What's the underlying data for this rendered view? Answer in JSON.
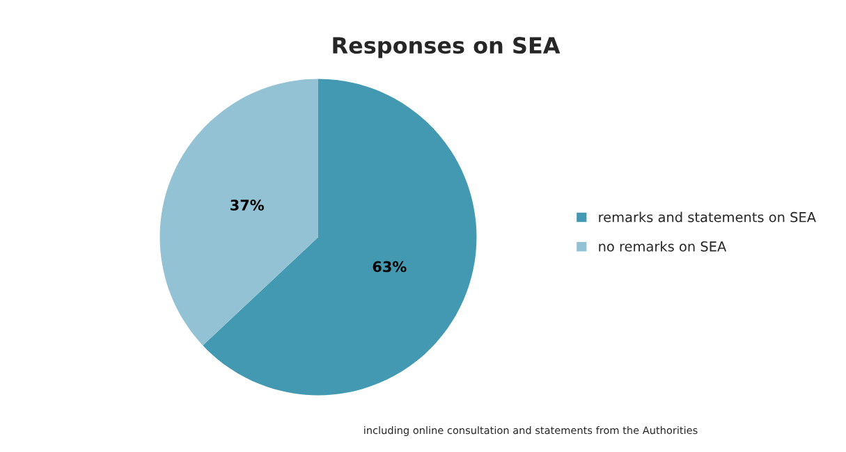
{
  "chart_data": {
    "type": "pie",
    "title": "Responses on SEA",
    "categories": [
      "remarks and statements on SEA",
      "no remarks on SEA"
    ],
    "values": [
      63,
      37
    ],
    "colors": [
      "#4399b1",
      "#93c2d4"
    ],
    "value_labels": [
      "63%",
      "37%"
    ],
    "legend": "right",
    "annotations": [
      "including online consultation and statements from the Authorities"
    ]
  }
}
